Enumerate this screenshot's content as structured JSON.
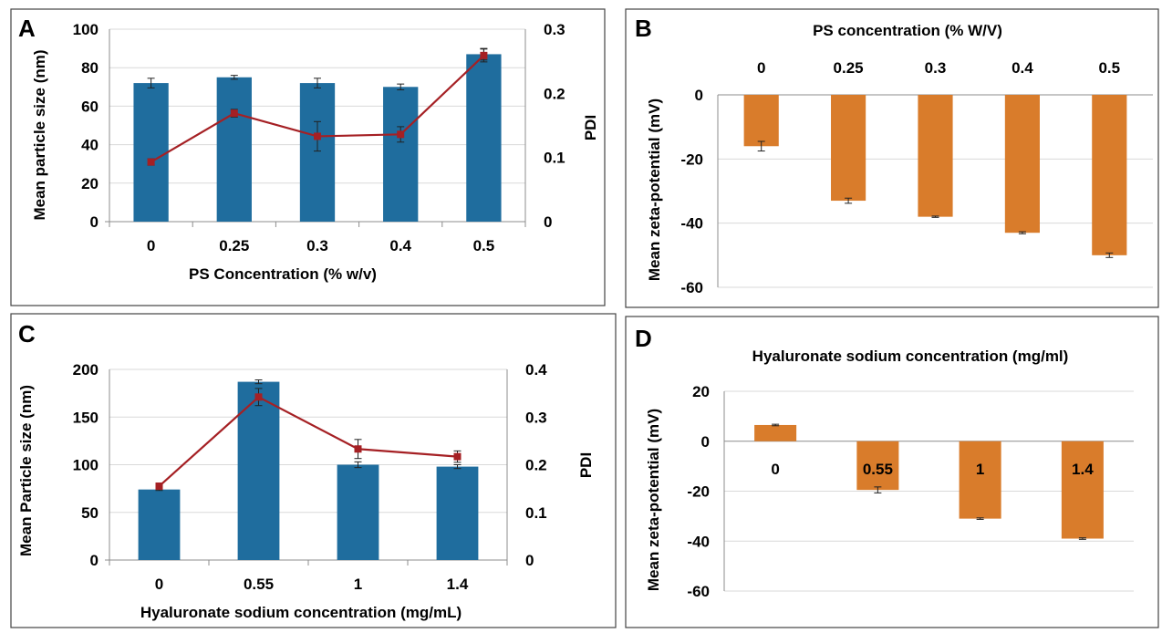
{
  "colors": {
    "bar_blue": "#1f6d9e",
    "bar_orange": "#d97c2b",
    "line_red": "#a52024"
  },
  "chart_data": [
    {
      "panel": "A",
      "type": "bar+line",
      "categories": [
        "0",
        "0.25",
        "0.3",
        "0.4",
        "0.5"
      ],
      "xlabel": "PS Concentration (% w/v)",
      "ylabel": "Mean particle size (nm)",
      "y2label": "PDI",
      "ylim": [
        0,
        100
      ],
      "yticks": [
        0,
        20,
        40,
        60,
        80,
        100
      ],
      "y2lim": [
        0,
        0.3
      ],
      "y2ticks": [
        "0",
        "0.1",
        "0.2",
        "0.3"
      ],
      "series": [
        {
          "kind": "bar",
          "axis": "left",
          "values": [
            72,
            75,
            72,
            70,
            87
          ],
          "errors": [
            2.5,
            1,
            2.5,
            1.5,
            3
          ]
        },
        {
          "kind": "line",
          "axis": "right",
          "values": [
            0.093,
            0.169,
            0.133,
            0.136,
            0.259
          ],
          "errors": [
            0.005,
            0.006,
            0.023,
            0.012,
            0.01
          ]
        }
      ]
    },
    {
      "panel": "B",
      "type": "bar",
      "categories": [
        "0",
        "0.25",
        "0.3",
        "0.4",
        "0.5"
      ],
      "title": "PS concentration (% W/V)",
      "ylabel": "Mean zeta-potential (mV)",
      "ylim": [
        -60,
        0
      ],
      "yticks": [
        0,
        -20,
        -40,
        -60
      ],
      "series": [
        {
          "kind": "bar",
          "values": [
            -16,
            -33,
            -38,
            -43,
            -50
          ],
          "errors": [
            1.5,
            0.8,
            0.2,
            0.3,
            0.7
          ]
        }
      ]
    },
    {
      "panel": "C",
      "type": "bar+line",
      "categories": [
        "0",
        "0.55",
        "1",
        "1.4"
      ],
      "xlabel": "Hyaluronate sodium concentration (mg/mL)",
      "ylabel": "Mean Particle size (nm)",
      "y2label": "PDI",
      "ylim": [
        0,
        200
      ],
      "yticks": [
        0,
        50,
        100,
        150,
        200
      ],
      "y2lim": [
        0,
        0.4
      ],
      "y2ticks": [
        "0",
        "0.1",
        "0.2",
        "0.3",
        "0.4"
      ],
      "series": [
        {
          "kind": "bar",
          "axis": "left",
          "values": [
            74,
            187,
            100,
            98
          ],
          "errors": [
            1,
            2,
            3,
            2
          ]
        },
        {
          "kind": "line",
          "axis": "right",
          "values": [
            0.155,
            0.342,
            0.233,
            0.217
          ],
          "errors": [
            0.004,
            0.018,
            0.02,
            0.012
          ]
        }
      ]
    },
    {
      "panel": "D",
      "type": "bar",
      "categories": [
        "0",
        "0.55",
        "1",
        "1.4"
      ],
      "title": "Hyaluronate sodium concentration (mg/ml)",
      "ylabel": "Mean zeta-potential (mV)",
      "ylim": [
        -60,
        20
      ],
      "yticks": [
        20,
        0,
        -20,
        -40,
        -60
      ],
      "series": [
        {
          "kind": "bar",
          "values": [
            6.5,
            -19.5,
            -31,
            -39
          ],
          "errors": [
            0.3,
            1.2,
            0.3,
            0.3
          ]
        }
      ]
    }
  ]
}
